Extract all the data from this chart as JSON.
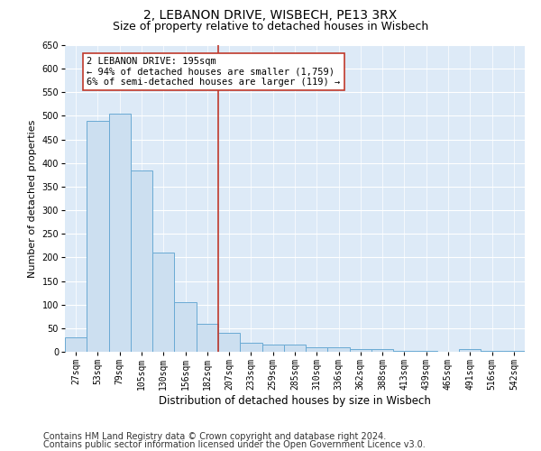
{
  "title": "2, LEBANON DRIVE, WISBECH, PE13 3RX",
  "subtitle": "Size of property relative to detached houses in Wisbech",
  "xlabel": "Distribution of detached houses by size in Wisbech",
  "ylabel": "Number of detached properties",
  "categories": [
    "27sqm",
    "53sqm",
    "79sqm",
    "105sqm",
    "130sqm",
    "156sqm",
    "182sqm",
    "207sqm",
    "233sqm",
    "259sqm",
    "285sqm",
    "310sqm",
    "336sqm",
    "362sqm",
    "388sqm",
    "413sqm",
    "439sqm",
    "465sqm",
    "491sqm",
    "516sqm",
    "542sqm"
  ],
  "values": [
    30,
    490,
    505,
    385,
    210,
    105,
    60,
    40,
    20,
    15,
    15,
    10,
    10,
    5,
    5,
    2,
    2,
    0,
    5,
    2,
    2
  ],
  "bar_color": "#ccdff0",
  "bar_edge_color": "#6aaad4",
  "vline_color": "#c0392b",
  "annotation_text": "2 LEBANON DRIVE: 195sqm\n← 94% of detached houses are smaller (1,759)\n6% of semi-detached houses are larger (119) →",
  "annotation_box_color": "#ffffff",
  "annotation_box_edge": "#c0392b",
  "ylim": [
    0,
    650
  ],
  "yticks": [
    0,
    50,
    100,
    150,
    200,
    250,
    300,
    350,
    400,
    450,
    500,
    550,
    600,
    650
  ],
  "plot_bg_color": "#ddeaf7",
  "fig_bg_color": "#ffffff",
  "footer1": "Contains HM Land Registry data © Crown copyright and database right 2024.",
  "footer2": "Contains public sector information licensed under the Open Government Licence v3.0.",
  "title_fontsize": 10,
  "subtitle_fontsize": 9,
  "xlabel_fontsize": 8.5,
  "ylabel_fontsize": 8,
  "tick_fontsize": 7,
  "footer_fontsize": 7,
  "annotation_fontsize": 7.5
}
